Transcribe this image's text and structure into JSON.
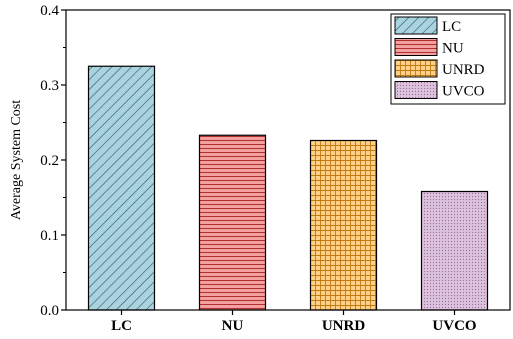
{
  "chart_data": {
    "type": "bar",
    "title": "",
    "xlabel": "",
    "ylabel": "Average System Cost",
    "categories": [
      "LC",
      "NU",
      "UNRD",
      "UVCO"
    ],
    "values": [
      0.325,
      0.233,
      0.226,
      0.158
    ],
    "ylim": [
      0,
      0.4
    ],
    "yticks": [
      "0.0",
      "0.1",
      "0.2",
      "0.3",
      "0.4"
    ],
    "grid": false,
    "legend_position": "top-right",
    "colors": [
      "#aad3df",
      "#f08f8f",
      "#ffc77a",
      "#d4a8d4"
    ],
    "patterns": [
      "diagonal-hatch",
      "horizontal-lines",
      "grid",
      "dots"
    ]
  }
}
